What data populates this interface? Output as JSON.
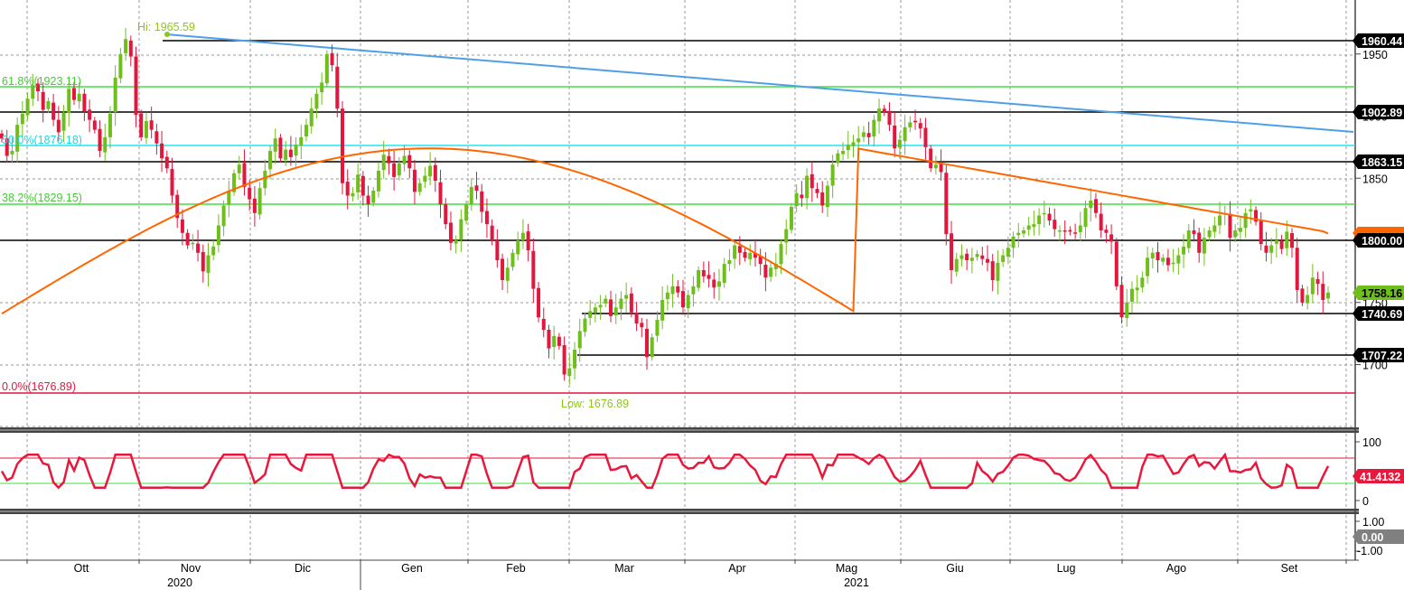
{
  "chart_data": {
    "type": "candlestick",
    "price_axis": {
      "ylim": [
        1612,
        1992
      ],
      "ticks": [
        1700,
        1750,
        1800,
        1850,
        1900,
        1950
      ],
      "tick_labels": [
        "1700",
        "1750",
        "1800",
        "1850",
        "1900",
        "1950"
      ]
    },
    "x_axis": {
      "months": [
        "Ott",
        "Nov",
        "Dic",
        "Gen",
        "Feb",
        "Mar",
        "Apr",
        "Mag",
        "Giu",
        "Lug",
        "Ago",
        "Set"
      ],
      "years": [
        "2020",
        "2021"
      ]
    },
    "annotations": {
      "high_label": "Hi: 1965.59",
      "low_label": "Low: 1676.89",
      "fib_618": "61.8%(1923.11)",
      "fib_50": "50.0%(1876.18)",
      "fib_382": "38.2%(1829.15)",
      "fib_0": "0.0%(1676.89)"
    },
    "levels": {
      "l1960": "1960.44",
      "l1902": "1902.89",
      "l1863": "1863.15",
      "l1800": "1800.00",
      "l1758": "1758.16",
      "l1740": "1740.69",
      "l1707": "1707.22"
    },
    "price_levels": [
      1960.44,
      1902.89,
      1863.15,
      1800.0,
      1758.16,
      1740.69,
      1707.22
    ],
    "fib_levels": [
      1923.11,
      1876.18,
      1829.15,
      1676.89
    ],
    "ma_last_value": 1805.5,
    "closes": [
      1882,
      1868,
      1872,
      1893,
      1902,
      1914,
      1925,
      1920,
      1905,
      1912,
      1897,
      1887,
      1903,
      1922,
      1913,
      1918,
      1904,
      1897,
      1889,
      1872,
      1883,
      1902,
      1931,
      1950,
      1962,
      1948,
      1901,
      1883,
      1896,
      1889,
      1878,
      1866,
      1858,
      1836,
      1818,
      1806,
      1796,
      1798,
      1790,
      1775,
      1788,
      1795,
      1812,
      1828,
      1840,
      1854,
      1861,
      1843,
      1833,
      1822,
      1842,
      1856,
      1872,
      1882,
      1866,
      1873,
      1867,
      1877,
      1883,
      1893,
      1906,
      1918,
      1927,
      1950,
      1941,
      1906,
      1846,
      1836,
      1838,
      1853,
      1836,
      1829,
      1840,
      1856,
      1869,
      1862,
      1851,
      1862,
      1868,
      1858,
      1839,
      1846,
      1852,
      1860,
      1848,
      1829,
      1813,
      1798,
      1800,
      1817,
      1829,
      1843,
      1840,
      1823,
      1813,
      1800,
      1784,
      1768,
      1778,
      1790,
      1800,
      1806,
      1792,
      1761,
      1738,
      1728,
      1713,
      1723,
      1715,
      1692,
      1697,
      1712,
      1727,
      1737,
      1743,
      1746,
      1748,
      1753,
      1739,
      1746,
      1753,
      1756,
      1742,
      1733,
      1730,
      1706,
      1722,
      1736,
      1752,
      1758,
      1763,
      1758,
      1746,
      1756,
      1763,
      1776,
      1771,
      1769,
      1762,
      1767,
      1781,
      1784,
      1796,
      1790,
      1786,
      1790,
      1786,
      1781,
      1770,
      1778,
      1781,
      1797,
      1809,
      1827,
      1838,
      1834,
      1852,
      1842,
      1838,
      1828,
      1844,
      1861,
      1870,
      1872,
      1877,
      1879,
      1882,
      1887,
      1883,
      1897,
      1906,
      1903,
      1893,
      1874,
      1881,
      1891,
      1895,
      1895,
      1890,
      1875,
      1858,
      1861,
      1855,
      1805,
      1776,
      1785,
      1788,
      1784,
      1786,
      1789,
      1785,
      1782,
      1768,
      1782,
      1788,
      1794,
      1803,
      1806,
      1808,
      1812,
      1813,
      1820,
      1822,
      1816,
      1809,
      1808,
      1807,
      1807,
      1806,
      1812,
      1826,
      1832,
      1822,
      1808,
      1806,
      1799,
      1763,
      1738,
      1750,
      1761,
      1762,
      1770,
      1786,
      1790,
      1784,
      1786,
      1780,
      1782,
      1788,
      1795,
      1808,
      1805,
      1790,
      1802,
      1808,
      1812,
      1820,
      1822,
      1802,
      1808,
      1810,
      1822,
      1825,
      1815,
      1797,
      1790,
      1796,
      1800,
      1793,
      1807,
      1794,
      1760,
      1750,
      1756,
      1770,
      1765,
      1752,
      1758
    ],
    "momentum_indicator": {
      "ylim": [
        0,
        100
      ],
      "ticks": [
        100,
        0
      ],
      "tick_labels": [
        "100",
        "0"
      ],
      "bands": [
        70,
        30
      ],
      "last_value": "41.4132"
    },
    "bottom_panel": {
      "tick_labels": [
        "1.00",
        "-1.00"
      ],
      "value_label": "0.00"
    }
  },
  "colors": {
    "up": "#6fbf1c",
    "down": "#e3173e",
    "moving_average": "#ff6600",
    "trendline": "#4f9ee8",
    "fib_green": "#44dd44",
    "fib_cyan": "#22e6ee",
    "fib_red": "#e3173e",
    "hi_lo_text": "#8fc51c",
    "indicator_line": "#e8183c"
  }
}
